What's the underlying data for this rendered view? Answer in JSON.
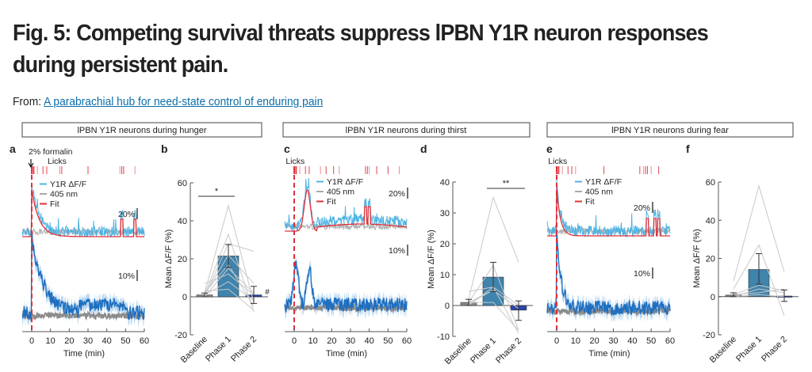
{
  "header": {
    "title": "Fig. 5: Competing survival threats suppress lPBN Y1R neuron responses during persistent pain.",
    "from_label": "From:",
    "from_link": "A parabrachial hub for need-state control of enduring pain"
  },
  "colors": {
    "y1r": "#4fb3e3",
    "isosbestic": "#a9a9a9",
    "fit": "#e0303a",
    "mean_trace": "#1f6fc0",
    "mean_sem": "#a8cdec",
    "baseline_bar": "#8a8a8a",
    "phase1_bar": "#3f84ad",
    "phase2_bar": "#2c43a8",
    "individual_lines": "#c8c8c8",
    "formalin_line": "#e0303a"
  },
  "groups": [
    {
      "title": "lPBN Y1R neurons during hunger"
    },
    {
      "title": "lPBN Y1R neurons during thirst"
    },
    {
      "title": "lPBN Y1R neurons during fear"
    }
  ],
  "chart_data": [
    {
      "panel": "a",
      "type": "line",
      "title": "lPBN Y1R neurons during hunger",
      "annotation": "2% formalin",
      "events_label": "Licks",
      "event_times_min": [
        0,
        1,
        3,
        6,
        8,
        15,
        16,
        30,
        47,
        48,
        49,
        55
      ],
      "legend": [
        "Y1R ΔF/F",
        "405 nm",
        "Fit"
      ],
      "scale_bars": [
        "20%",
        "10%"
      ],
      "xlabel": "Time (min)",
      "x_ticks": [
        0,
        10,
        20,
        30,
        40,
        50,
        60
      ],
      "xlim": [
        -5,
        60
      ],
      "stimulus_time_min": 0,
      "fit_shape": {
        "peak": 1.0,
        "decay_tau_min": 4,
        "late_bumps_min": [
          48,
          55
        ]
      },
      "mean_shape": {
        "peak": 1.0,
        "decay_tau_min": 4
      }
    },
    {
      "panel": "b",
      "type": "bar",
      "categories": [
        "Baseline",
        "Phase 1",
        "Phase 2"
      ],
      "values": [
        1,
        21.5,
        1
      ],
      "errors": [
        [
          0,
          2
        ],
        [
          15.5,
          27.5
        ],
        [
          -3.5,
          5.5
        ]
      ],
      "individual": [
        [
          2,
          48,
          -3
        ],
        [
          1,
          33,
          -8
        ],
        [
          0,
          28,
          24
        ],
        [
          1,
          22,
          7
        ],
        [
          2,
          17,
          -5
        ],
        [
          0,
          15,
          2
        ],
        [
          1,
          8,
          -2
        ],
        [
          3,
          4,
          -7
        ],
        [
          7,
          12,
          1
        ]
      ],
      "ylabel": "Mean ΔF/F (%)",
      "ylim": [
        -20,
        60
      ],
      "y_ticks": [
        -20,
        0,
        20,
        40,
        60
      ],
      "significance": [
        {
          "between": [
            "Baseline",
            "Phase 1"
          ],
          "label": "*"
        },
        {
          "at": "Phase 2",
          "label": "#"
        }
      ]
    },
    {
      "panel": "c",
      "type": "line",
      "title": "lPBN Y1R neurons during thirst",
      "events_label": "Licks",
      "event_times_min": [
        0,
        1,
        3,
        6,
        8,
        14,
        17,
        21,
        24,
        38,
        39,
        40,
        44,
        50,
        56
      ],
      "legend": [
        "Y1R ΔF/F",
        "405 nm",
        "Fit"
      ],
      "scale_bars": [
        "20%",
        "10%"
      ],
      "xlabel": "Time (min)",
      "x_ticks": [
        0,
        10,
        20,
        30,
        40,
        50,
        60
      ],
      "xlim": [
        -5,
        60
      ],
      "stimulus_time_min": 0,
      "fit_shape": {
        "peak_time_min": 7,
        "late_bumps_min": [
          38,
          40
        ]
      },
      "mean_shape": {
        "peaks_min": [
          1,
          8
        ]
      }
    },
    {
      "panel": "d",
      "type": "bar",
      "categories": [
        "Baseline",
        "Phase 1",
        "Phase 2"
      ],
      "values": [
        1,
        9.2,
        -1.5
      ],
      "errors": [
        [
          0,
          2
        ],
        [
          4.5,
          14
        ],
        [
          -4.8,
          1.5
        ]
      ],
      "individual": [
        [
          2,
          35,
          14
        ],
        [
          1,
          13,
          -8
        ],
        [
          4.5,
          6,
          -9
        ],
        [
          0.5,
          5,
          -1
        ],
        [
          1,
          1,
          -8
        ],
        [
          0,
          6,
          0
        ],
        [
          1,
          5,
          -1
        ]
      ],
      "ylabel": "Mean ΔF/F (%)",
      "ylim": [
        -10,
        40
      ],
      "y_ticks": [
        -10,
        0,
        10,
        20,
        30,
        40
      ],
      "significance": [
        {
          "between": [
            "Phase 1",
            "Phase 2"
          ],
          "label": "**"
        }
      ]
    },
    {
      "panel": "e",
      "type": "line",
      "title": "lPBN Y1R neurons during fear",
      "events_label": "Licks",
      "event_times_min": [
        0,
        1,
        3,
        6,
        8,
        10,
        25,
        44,
        46,
        47,
        48,
        50,
        54
      ],
      "legend": [
        "Y1R ΔF/F",
        "405 nm",
        "Fit"
      ],
      "scale_bars": [
        "20%",
        "10%"
      ],
      "xlabel": "Time (min)",
      "x_ticks": [
        0,
        10,
        20,
        30,
        40,
        50,
        60
      ],
      "xlim": [
        -5,
        60
      ],
      "stimulus_time_min": 0,
      "fit_shape": {
        "peak": 1.0,
        "decay_tau_min": 2,
        "late_bumps_min": [
          48,
          52,
          54
        ]
      },
      "mean_shape": {
        "peak": 1.0,
        "decay_tau_min": 1.5
      }
    },
    {
      "panel": "f",
      "type": "bar",
      "categories": [
        "Baseline",
        "Phase 1",
        "Phase 2"
      ],
      "values": [
        0.8,
        14.2,
        0.3
      ],
      "errors": [
        [
          0,
          2
        ],
        [
          6.5,
          22.5
        ],
        [
          -2.5,
          3.5
        ]
      ],
      "individual": [
        [
          8,
          58,
          13
        ],
        [
          4,
          27,
          -10
        ],
        [
          1,
          6,
          3
        ],
        [
          0,
          4,
          2
        ],
        [
          1,
          2,
          4
        ],
        [
          0,
          1,
          0
        ]
      ],
      "ylabel": "Mean ΔF/F (%)",
      "ylim": [
        -20,
        60
      ],
      "y_ticks": [
        -20,
        0,
        20,
        40,
        60
      ]
    }
  ],
  "panel_letters": [
    "a",
    "b",
    "c",
    "d",
    "e",
    "f"
  ]
}
